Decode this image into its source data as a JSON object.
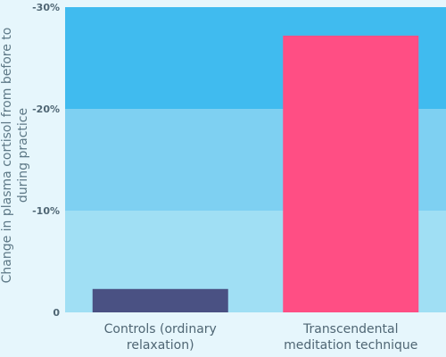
{
  "chart_data": {
    "type": "bar",
    "title": "",
    "xlabel": "",
    "ylabel_lines": [
      "Change in plasma cortisol from before to",
      "during practice"
    ],
    "categories": [
      {
        "lines": [
          "Controls (ordinary",
          "relaxation)"
        ]
      },
      {
        "lines": [
          "Transcendental",
          "meditation technique"
        ]
      }
    ],
    "values": [
      -2.3,
      -27.2
    ],
    "ylim": [
      0,
      -30
    ],
    "yticks": [
      {
        "value": -30,
        "label": "-30%"
      },
      {
        "value": -20,
        "label": "-20%"
      },
      {
        "value": -10,
        "label": "-10%"
      },
      {
        "value": 0,
        "label": "0"
      }
    ],
    "bands": [
      {
        "from": 0,
        "to": -10,
        "color": "#a0dff4"
      },
      {
        "from": -10,
        "to": -20,
        "color": "#7ed0f2"
      },
      {
        "from": -20,
        "to": -30,
        "color": "#40bbef"
      }
    ],
    "bar_colors": [
      "#4a5183",
      "#ff4e84"
    ],
    "background_color": "#e6f6fc",
    "grid": false,
    "legend": "none"
  }
}
